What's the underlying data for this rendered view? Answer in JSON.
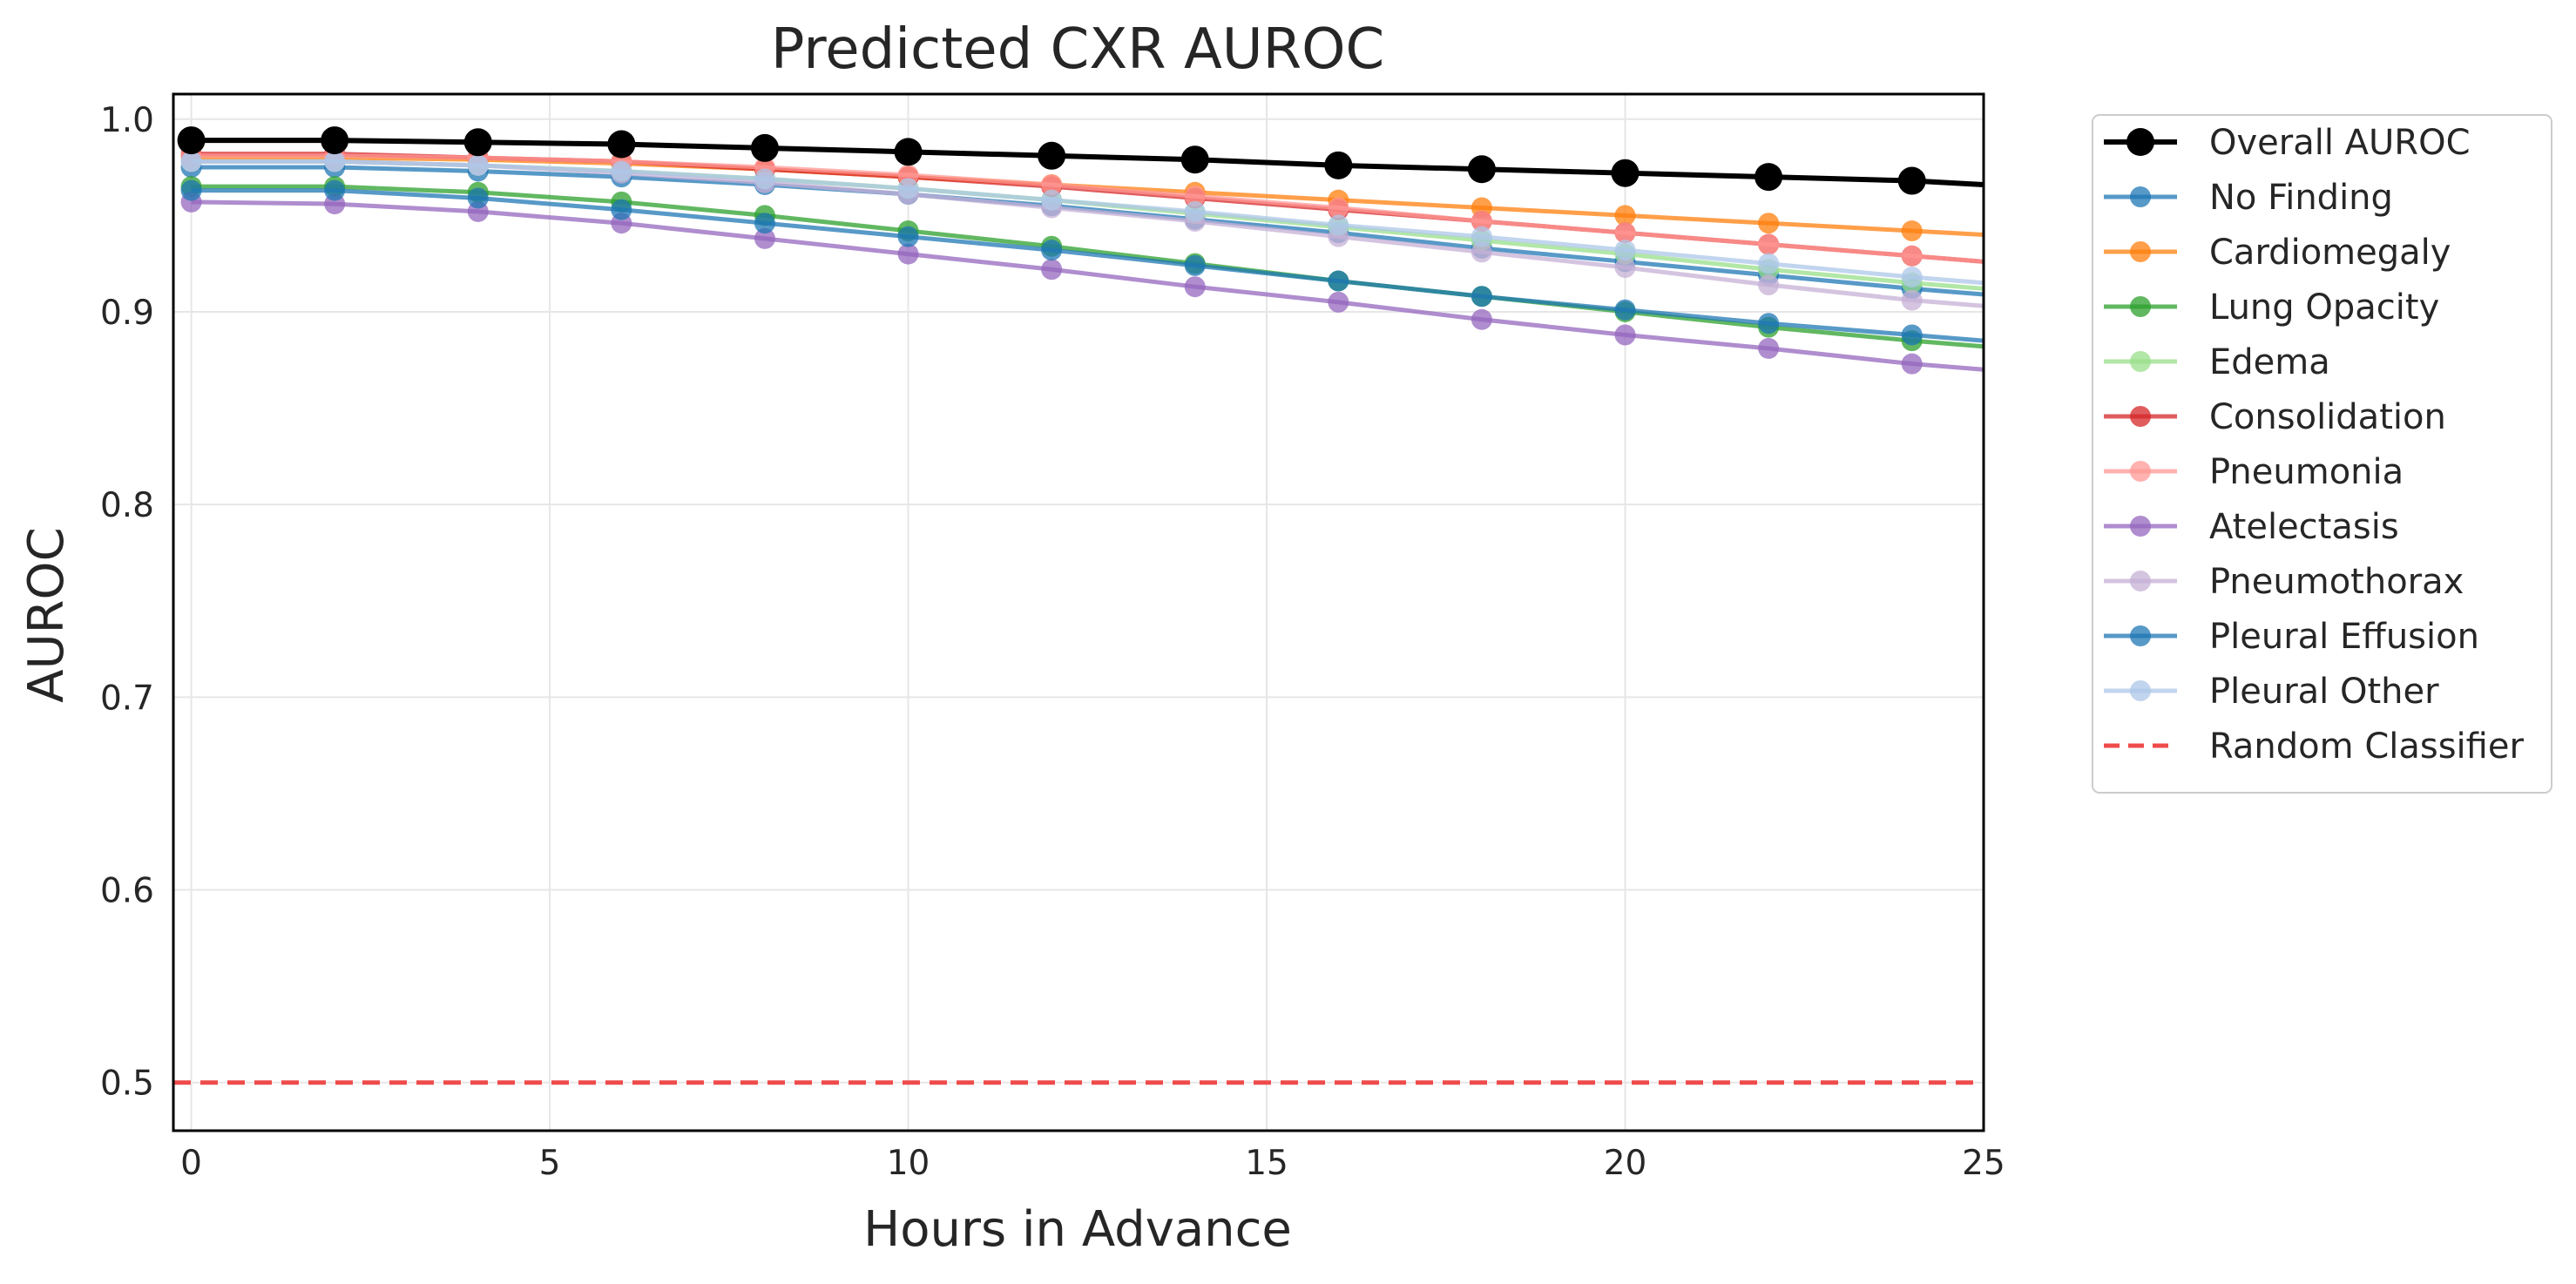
{
  "chart_data": {
    "type": "line",
    "title": "Predicted CXR AUROC",
    "xlabel": "Hours in Advance",
    "ylabel": "AUROC",
    "xlim": [
      -0.25,
      25
    ],
    "ylim": [
      0.475,
      1.013
    ],
    "x_ticks": [
      "0",
      "5",
      "10",
      "15",
      "20",
      "25"
    ],
    "y_ticks": [
      "0.5",
      "0.6",
      "0.7",
      "0.8",
      "0.9",
      "1.0"
    ],
    "grid": true,
    "legend_position": "outside right",
    "x": [
      0,
      2,
      4,
      6,
      8,
      10,
      12,
      14,
      16,
      18,
      20,
      22,
      24
    ],
    "series": [
      {
        "name": "Overall AUROC",
        "color": "#000000",
        "emphasis": true,
        "values": [
          0.989,
          0.989,
          0.988,
          0.987,
          0.985,
          0.983,
          0.981,
          0.979,
          0.976,
          0.974,
          0.972,
          0.97,
          0.968
        ],
        "end": 0.966
      },
      {
        "name": "No Finding",
        "color": "#1f77b4",
        "values": [
          0.975,
          0.975,
          0.973,
          0.97,
          0.966,
          0.961,
          0.955,
          0.948,
          0.941,
          0.933,
          0.926,
          0.919,
          0.912
        ],
        "end": 0.909
      },
      {
        "name": "Cardiomegaly",
        "color": "#ff7f0e",
        "values": [
          0.98,
          0.98,
          0.979,
          0.977,
          0.974,
          0.97,
          0.966,
          0.962,
          0.958,
          0.954,
          0.95,
          0.946,
          0.942
        ],
        "end": 0.94
      },
      {
        "name": "Lung Opacity",
        "color": "#2ca02c",
        "values": [
          0.965,
          0.965,
          0.962,
          0.957,
          0.95,
          0.942,
          0.934,
          0.925,
          0.916,
          0.908,
          0.9,
          0.892,
          0.885
        ],
        "end": 0.882
      },
      {
        "name": "Edema",
        "color": "#98df8a",
        "values": [
          0.978,
          0.978,
          0.976,
          0.973,
          0.969,
          0.964,
          0.958,
          0.951,
          0.944,
          0.937,
          0.93,
          0.922,
          0.915
        ],
        "end": 0.912
      },
      {
        "name": "Consolidation",
        "color": "#d62728",
        "values": [
          0.982,
          0.982,
          0.98,
          0.978,
          0.974,
          0.97,
          0.965,
          0.959,
          0.953,
          0.947,
          0.941,
          0.935,
          0.929
        ],
        "end": 0.926
      },
      {
        "name": "Pneumonia",
        "color": "#ff9896",
        "values": [
          0.981,
          0.981,
          0.98,
          0.978,
          0.975,
          0.971,
          0.966,
          0.96,
          0.954,
          0.947,
          0.941,
          0.935,
          0.929
        ],
        "end": 0.926
      },
      {
        "name": "Atelectasis",
        "color": "#9467bd",
        "values": [
          0.957,
          0.956,
          0.952,
          0.946,
          0.938,
          0.93,
          0.922,
          0.913,
          0.905,
          0.896,
          0.888,
          0.881,
          0.873
        ],
        "end": 0.87
      },
      {
        "name": "Pneumothorax",
        "color": "#c5b0d5",
        "values": [
          0.978,
          0.978,
          0.976,
          0.972,
          0.967,
          0.961,
          0.954,
          0.947,
          0.939,
          0.931,
          0.923,
          0.914,
          0.906
        ],
        "end": 0.903
      },
      {
        "name": "Pleural Effusion",
        "color": "#1f77b4",
        "values": [
          0.963,
          0.963,
          0.959,
          0.953,
          0.946,
          0.939,
          0.932,
          0.924,
          0.916,
          0.908,
          0.901,
          0.894,
          0.888
        ],
        "end": 0.885
      },
      {
        "name": "Pleural Other",
        "color": "#aec7e8",
        "values": [
          0.978,
          0.978,
          0.976,
          0.973,
          0.969,
          0.964,
          0.958,
          0.952,
          0.945,
          0.939,
          0.932,
          0.925,
          0.918
        ],
        "end": 0.915
      }
    ],
    "reference_line": {
      "name": "Random Classifier",
      "value": 0.5,
      "color": "#ef4b4b",
      "style": "dashed"
    }
  }
}
